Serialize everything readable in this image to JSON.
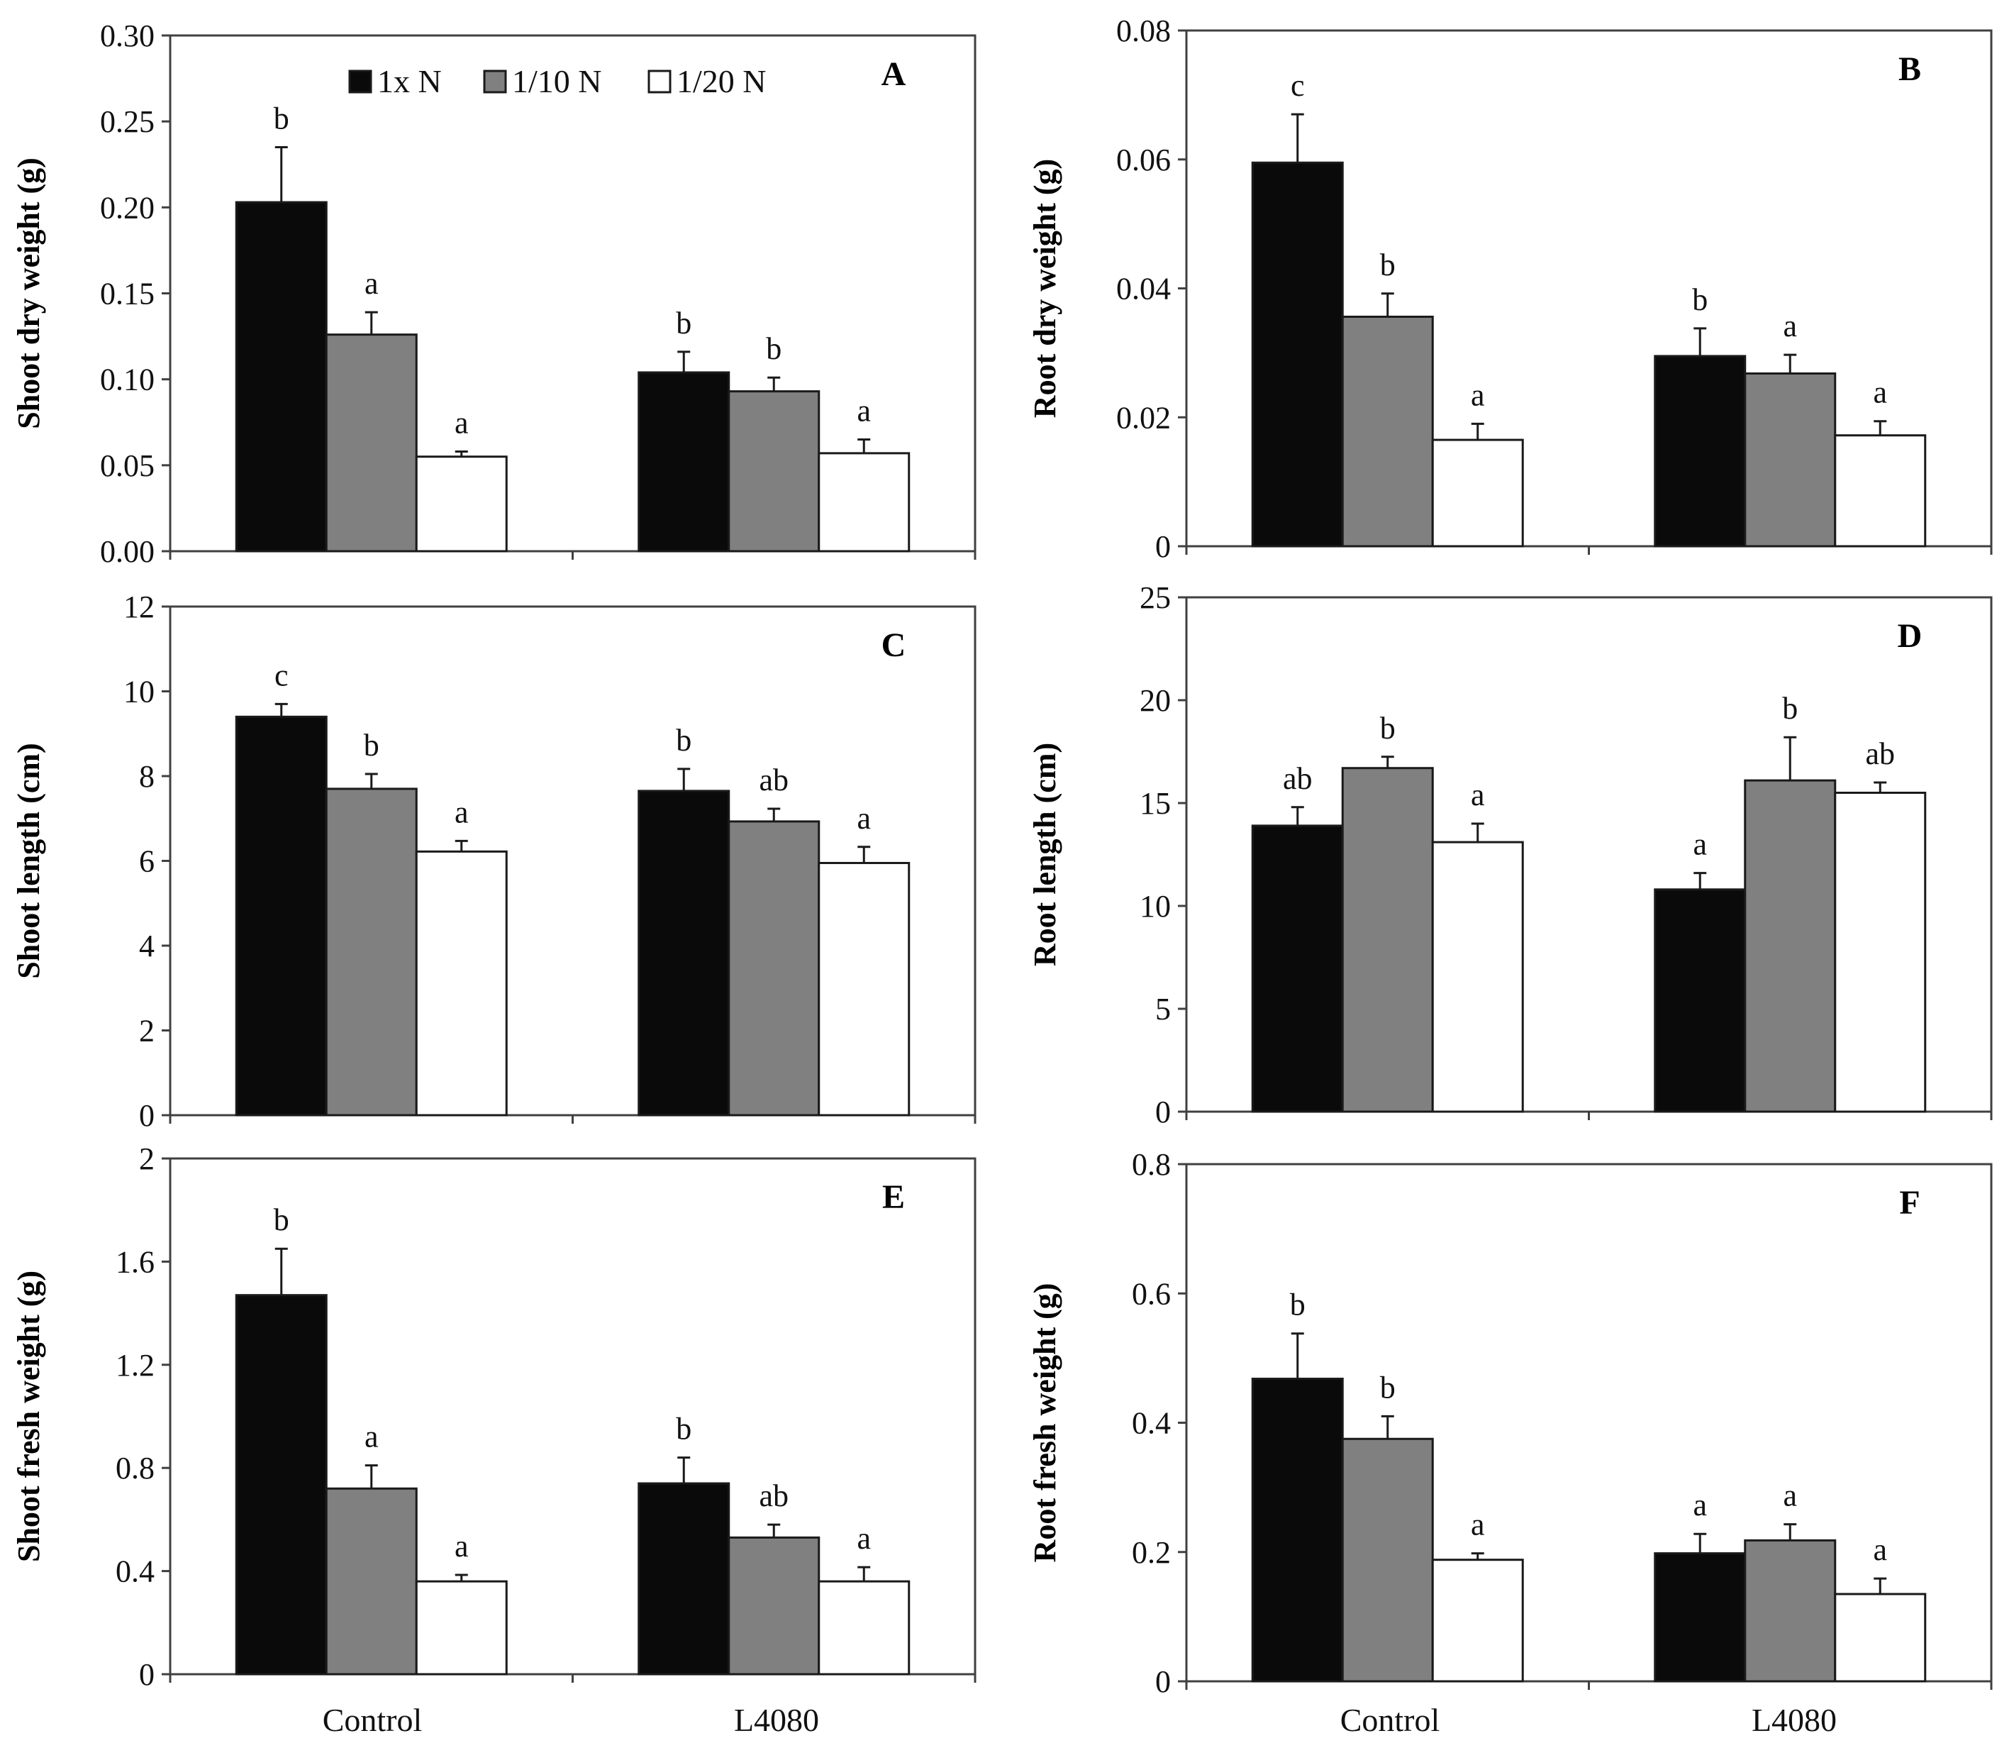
{
  "legend": [
    {
      "name": "1x N",
      "color": "#0a0a0a"
    },
    {
      "name": "1/10 N",
      "color": "#808080"
    },
    {
      "name": "1/20 N",
      "color": "#ffffff"
    }
  ],
  "chart_data": [
    {
      "type": "bar",
      "panel": "A",
      "ylabel": "Shoot dry weight (g)",
      "categories": [
        "Control",
        "L4080"
      ],
      "ylim": [
        0,
        0.3
      ],
      "yticks": [
        0,
        0.05,
        0.1,
        0.15,
        0.2,
        0.25,
        0.3
      ],
      "ytick_labels": [
        "0.00",
        "0.05",
        "0.10",
        "0.15",
        "0.20",
        "0.25",
        "0.30"
      ],
      "series": [
        {
          "name": "1x N",
          "values": [
            0.203,
            0.104
          ],
          "errors": [
            0.032,
            0.012
          ],
          "letters": [
            "b",
            "b"
          ]
        },
        {
          "name": "1/10 N",
          "values": [
            0.126,
            0.093
          ],
          "errors": [
            0.013,
            0.008
          ],
          "letters": [
            "a",
            "b"
          ]
        },
        {
          "name": "1/20 N",
          "values": [
            0.055,
            0.057
          ],
          "errors": [
            0.003,
            0.008
          ],
          "letters": [
            "a",
            "a"
          ]
        }
      ]
    },
    {
      "type": "bar",
      "panel": "B",
      "ylabel": "Root dry weight (g)",
      "categories": [
        "Control",
        "L4080"
      ],
      "ylim": [
        0,
        0.08
      ],
      "yticks": [
        0,
        0.02,
        0.04,
        0.06,
        0.08
      ],
      "ytick_labels": [
        "0",
        "0.02",
        "0.04",
        "0.06",
        "0.08"
      ],
      "series": [
        {
          "name": "1x N",
          "values": [
            0.0595,
            0.0295
          ],
          "errors": [
            0.0075,
            0.0043
          ],
          "letters": [
            "c",
            "b"
          ]
        },
        {
          "name": "1/10 N",
          "values": [
            0.0356,
            0.0268
          ],
          "errors": [
            0.0036,
            0.0029
          ],
          "letters": [
            "b",
            "a"
          ]
        },
        {
          "name": "1/20 N",
          "values": [
            0.0165,
            0.0172
          ],
          "errors": [
            0.0025,
            0.0022
          ],
          "letters": [
            "a",
            "a"
          ]
        }
      ]
    },
    {
      "type": "bar",
      "panel": "C",
      "ylabel": "Shoot length (cm)",
      "categories": [
        "Control",
        "L4080"
      ],
      "ylim": [
        0,
        12
      ],
      "yticks": [
        0,
        2,
        4,
        6,
        8,
        10,
        12
      ],
      "ytick_labels": [
        "0",
        "2",
        "4",
        "6",
        "8",
        "10",
        "12"
      ],
      "series": [
        {
          "name": "1x N",
          "values": [
            9.4,
            7.65
          ],
          "errors": [
            0.3,
            0.52
          ],
          "letters": [
            "c",
            "b"
          ]
        },
        {
          "name": "1/10 N",
          "values": [
            7.7,
            6.93
          ],
          "errors": [
            0.35,
            0.3
          ],
          "letters": [
            "b",
            "ab"
          ]
        },
        {
          "name": "1/20 N",
          "values": [
            6.22,
            5.95
          ],
          "errors": [
            0.25,
            0.38
          ],
          "letters": [
            "a",
            "a"
          ]
        }
      ]
    },
    {
      "type": "bar",
      "panel": "D",
      "ylabel": "Root length (cm)",
      "categories": [
        "Control",
        "L4080"
      ],
      "ylim": [
        0,
        25
      ],
      "yticks": [
        0,
        5,
        10,
        15,
        20,
        25
      ],
      "ytick_labels": [
        "0",
        "5",
        "10",
        "15",
        "20",
        "25"
      ],
      "series": [
        {
          "name": "1x N",
          "values": [
            13.9,
            10.8
          ],
          "errors": [
            0.9,
            0.8
          ],
          "letters": [
            "ab",
            "a"
          ]
        },
        {
          "name": "1/10 N",
          "values": [
            16.7,
            16.1
          ],
          "errors": [
            0.55,
            2.1
          ],
          "letters": [
            "b",
            "b"
          ]
        },
        {
          "name": "1/20 N",
          "values": [
            13.1,
            15.5
          ],
          "errors": [
            0.9,
            0.5
          ],
          "letters": [
            "a",
            "ab"
          ]
        }
      ]
    },
    {
      "type": "bar",
      "panel": "E",
      "ylabel": "Shoot fresh weight (g)",
      "categories": [
        "Control",
        "L4080"
      ],
      "ylim": [
        0,
        2
      ],
      "yticks": [
        0,
        0.4,
        0.8,
        1.2,
        1.6,
        2
      ],
      "ytick_labels": [
        "0",
        "0.4",
        "0.8",
        "1.2",
        "1.6",
        "2"
      ],
      "series": [
        {
          "name": "1x N",
          "values": [
            1.47,
            0.74
          ],
          "errors": [
            0.18,
            0.1
          ],
          "letters": [
            "b",
            "b"
          ]
        },
        {
          "name": "1/10 N",
          "values": [
            0.72,
            0.53
          ],
          "errors": [
            0.09,
            0.05
          ],
          "letters": [
            "a",
            "ab"
          ]
        },
        {
          "name": "1/20 N",
          "values": [
            0.36,
            0.36
          ],
          "errors": [
            0.025,
            0.055
          ],
          "letters": [
            "a",
            "a"
          ]
        }
      ]
    },
    {
      "type": "bar",
      "panel": "F",
      "ylabel": "Root fresh weight (g)",
      "categories": [
        "Control",
        "L4080"
      ],
      "ylim": [
        0,
        0.8
      ],
      "yticks": [
        0,
        0.2,
        0.4,
        0.6,
        0.8
      ],
      "ytick_labels": [
        "0",
        "0.2",
        "0.4",
        "0.6",
        "0.8"
      ],
      "series": [
        {
          "name": "1x N",
          "values": [
            0.468,
            0.198
          ],
          "errors": [
            0.07,
            0.03
          ],
          "letters": [
            "b",
            "a"
          ]
        },
        {
          "name": "1/10 N",
          "values": [
            0.375,
            0.218
          ],
          "errors": [
            0.035,
            0.025
          ],
          "letters": [
            "b",
            "a"
          ]
        },
        {
          "name": "1/20 N",
          "values": [
            0.188,
            0.135
          ],
          "errors": [
            0.01,
            0.024
          ],
          "letters": [
            "a",
            "a"
          ]
        }
      ]
    }
  ]
}
